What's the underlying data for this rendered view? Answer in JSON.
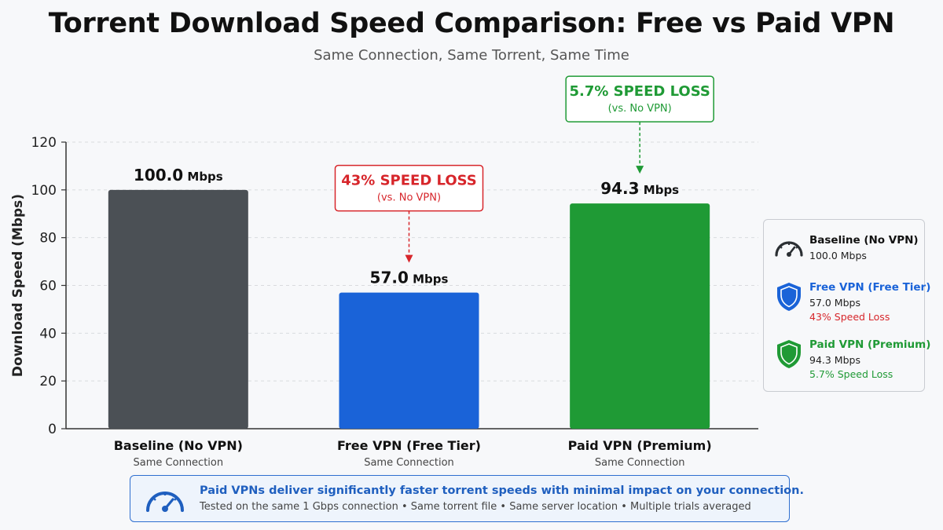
{
  "chart_data": {
    "type": "bar",
    "title": "Torrent Download Speed Comparison: Free vs Paid VPN",
    "subtitle": "Same Connection, Same Torrent, Same Time",
    "xlabel": "",
    "ylabel": "Download Speed (Mbps)",
    "ylim": [
      0,
      120
    ],
    "yticks": [
      0,
      20,
      40,
      60,
      80,
      100,
      120
    ],
    "grid": true,
    "legend_position": "right",
    "categories": [
      "Baseline (No VPN)",
      "Free VPN (Free Tier)",
      "Paid VPN (Premium)"
    ],
    "category_sublabels": [
      "Same Connection",
      "Same Connection",
      "Same Connection"
    ],
    "values": [
      100.0,
      57.0,
      94.3
    ],
    "value_labels": [
      "100.0",
      "57.0",
      "94.3"
    ],
    "unit": "Mbps",
    "colors": [
      "#4b5055",
      "#1a63d8",
      "#1f9a35"
    ],
    "annotations": [
      {
        "category": "Free VPN (Free Tier)",
        "text": "43% SPEED LOSS",
        "subtext": "(vs. No VPN)",
        "color": "#d7262b"
      },
      {
        "category": "Paid VPN (Premium)",
        "text": "5.7% SPEED LOSS",
        "subtext": "(vs. No VPN)",
        "color": "#1f9a35"
      }
    ]
  },
  "legend": {
    "items": [
      {
        "name": "Baseline (No VPN)",
        "value": "100.0 Mbps",
        "loss": "",
        "icon": "speedometer-icon",
        "color": "#111111",
        "loss_color": ""
      },
      {
        "name": "Free VPN (Free Tier)",
        "value": "57.0 Mbps",
        "loss": "43% Speed Loss",
        "icon": "shield-icon",
        "color": "#1a63d8",
        "loss_color": "#d7262b"
      },
      {
        "name": "Paid VPN (Premium)",
        "value": "94.3 Mbps",
        "loss": "5.7% Speed Loss",
        "icon": "shield-icon",
        "color": "#1f9a35",
        "loss_color": "#1f9a35"
      }
    ]
  },
  "footer": {
    "icon": "speedometer-icon",
    "headline": "Paid VPNs deliver significantly faster torrent speeds with minimal impact on your connection.",
    "details": "Tested on the same 1 Gbps connection • Same torrent file • Same server location • Multiple trials averaged"
  }
}
